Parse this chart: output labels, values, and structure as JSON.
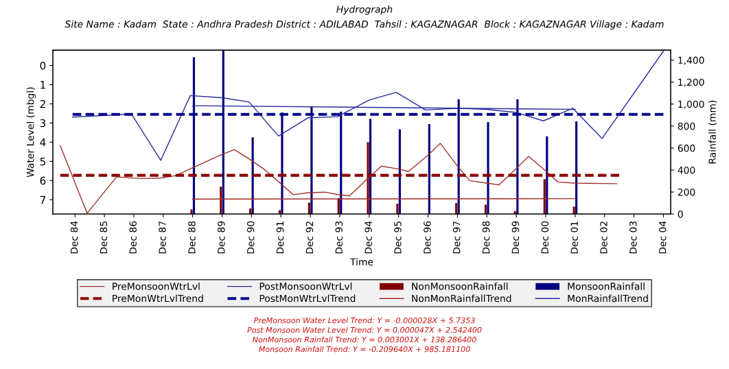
{
  "chart_data": {
    "type": "line",
    "title": "Hydrograph",
    "subtitle": "Site Name : Kadam  State : Andhra Pradesh District : ADILABAD  Tahsil : KAGAZNAGAR  Block : KAGAZNAGAR Village : Kadam",
    "xlabel": "Time",
    "ylabel": "Water Level (mbgl)",
    "y2label": "Rainfall (mm)",
    "xlim": [
      "1984-03",
      "2005-03"
    ],
    "xticks": [
      {
        "value": "1984-12",
        "label": "Dec 84"
      },
      {
        "value": "1985-12",
        "label": "Dec 85"
      },
      {
        "value": "1986-12",
        "label": "Dec 86"
      },
      {
        "value": "1987-12",
        "label": "Dec 87"
      },
      {
        "value": "1988-12",
        "label": "Dec 88"
      },
      {
        "value": "1989-12",
        "label": "Dec 89"
      },
      {
        "value": "1990-12",
        "label": "Dec 90"
      },
      {
        "value": "1991-12",
        "label": "Dec 91"
      },
      {
        "value": "1992-12",
        "label": "Dec 92"
      },
      {
        "value": "1993-12",
        "label": "Dec 93"
      },
      {
        "value": "1994-12",
        "label": "Dec 94"
      },
      {
        "value": "1995-12",
        "label": "Dec 95"
      },
      {
        "value": "1996-12",
        "label": "Dec 96"
      },
      {
        "value": "1997-12",
        "label": "Dec 97"
      },
      {
        "value": "1998-12",
        "label": "Dec 98"
      },
      {
        "value": "1999-12",
        "label": "Dec 99"
      },
      {
        "value": "2000-12",
        "label": "Dec 00"
      },
      {
        "value": "2001-12",
        "label": "Dec 01"
      },
      {
        "value": "2002-12",
        "label": "Dec 02"
      },
      {
        "value": "2003-12",
        "label": "Dec 03"
      },
      {
        "value": "2004-12",
        "label": "Dec 04"
      }
    ],
    "ylim": [
      7.75,
      -0.8
    ],
    "yticks": [
      0,
      1,
      2,
      3,
      4,
      5,
      6,
      7
    ],
    "y2lim": [
      0,
      1490
    ],
    "y2ticks": [
      0,
      200,
      400,
      600,
      800,
      {
        "value": 1000,
        "label": "1,000"
      },
      {
        "value": 1200,
        "label": "1,200"
      },
      {
        "value": 1400,
        "label": "1,400"
      }
    ],
    "grid": false,
    "legend": "bottom",
    "series": [
      {
        "name": "PreMonsoonWtrLvl",
        "color": "#a0302a",
        "line_style": "solid",
        "x": [
          "1984-06",
          "1985-05",
          "1986-05",
          "1987-03",
          "1987-11",
          "1988-05",
          "1989-11",
          "1990-05",
          "1990-12",
          "1991-05",
          "1991-12",
          "1992-05",
          "1992-11",
          "1993-06",
          "1993-11",
          "1994-04",
          "1994-11",
          "1995-05",
          "1995-12",
          "1996-04",
          "1996-12",
          "1997-05",
          "1997-12",
          "1998-05",
          "1998-12",
          "1999-05",
          "1999-12",
          "2000-05",
          "2000-12",
          "2001-05",
          "2001-12",
          "2003-05"
        ],
        "values": [
          4.19,
          7.71,
          5.81,
          5.9,
          5.87,
          5.75,
          4.69,
          4.39,
          4.95,
          5.4,
          6.17,
          6.74,
          6.64,
          6.61,
          6.73,
          6.8,
          5.95,
          5.25,
          5.4,
          5.53,
          4.68,
          4.06,
          5.25,
          6.01,
          6.14,
          6.23,
          5.38,
          4.74,
          5.5,
          6.08,
          6.14,
          6.17
        ]
      },
      {
        "name": "PostMonsoonWtrLvl",
        "color": "#2a2aa0",
        "line_style": "solid",
        "x": [
          "1984-11",
          "1986-11",
          "1987-11",
          "1988-11",
          "1989-12",
          "1990-11",
          "1991-11",
          "1992-11",
          "1993-11",
          "1994-12",
          "1995-11",
          "1996-11",
          "1997-12",
          "1998-12",
          "1999-12",
          "2000-11",
          "2001-11",
          "2002-11",
          "2004-12"
        ],
        "values": [
          2.69,
          2.53,
          4.95,
          1.57,
          1.68,
          1.9,
          3.68,
          2.73,
          2.67,
          1.8,
          1.4,
          2.32,
          2.23,
          2.29,
          2.45,
          2.89,
          2.23,
          3.81,
          -0.75
        ]
      },
      {
        "name": "NonMonsoonRainfall",
        "type": "bar",
        "axis": "y2",
        "color": "#800000",
        "x": [
          "1988-12",
          "1989-12",
          "1990-12",
          "1991-12",
          "1992-12",
          "1993-12",
          "1994-12",
          "1995-12",
          "1996-12",
          "1997-12",
          "1998-12",
          "1999-12",
          "2000-12",
          "2001-12"
        ],
        "values": [
          42,
          249,
          50,
          35,
          104,
          146,
          653,
          94,
          null,
          100,
          85,
          27,
          317,
          67
        ]
      },
      {
        "name": "MonsoonRainfall",
        "type": "bar",
        "axis": "y2",
        "color": "#000080",
        "x": [
          "1988-12",
          "1989-12",
          "1990-12",
          "1991-12",
          "1992-12",
          "1993-12",
          "1994-12",
          "1995-12",
          "1996-12",
          "1997-12",
          "1998-12",
          "1999-12",
          "2000-12",
          "2001-12"
        ],
        "values": [
          1425,
          1490,
          698,
          923,
          973,
          931,
          865,
          770,
          818,
          1043,
          836,
          1043,
          707,
          843
        ]
      },
      {
        "name": "PreMonWtrLvlTrend",
        "color": "#8b0000",
        "line_style": "dashed",
        "x": [
          "1984-06",
          "2003-06"
        ],
        "values": [
          5.73,
          5.73
        ]
      },
      {
        "name": "PostMonWtrLvlTrend",
        "color": "#00008b",
        "line_style": "dashed",
        "x": [
          "1984-11",
          "2004-12"
        ],
        "values": [
          2.55,
          2.55
        ]
      },
      {
        "name": "NonMonRainfallTrend",
        "axis": "y2",
        "color": "#a0302a",
        "line_style": "solid",
        "x": [
          "1988-12",
          "2001-12"
        ],
        "values": [
          136,
          140
        ]
      },
      {
        "name": "MonRainfallTrend",
        "axis": "y2",
        "color": "#2a2aa0",
        "line_style": "solid",
        "x": [
          "1988-12",
          "2001-12"
        ],
        "values": [
          985,
          952
        ]
      }
    ],
    "annotations": [
      "PreMonsoon Water Level Trend: Y = -0.000028X + 5.7353",
      "Post Monsoon Water Level Trend: Y = 0.000047X + 2.542400",
      "NonMonsoon Rainfall Trend: Y = 0.003001X + 138.286400",
      "Monsoon Rainfall Trend: Y = -0.209640X + 985.181100"
    ]
  }
}
